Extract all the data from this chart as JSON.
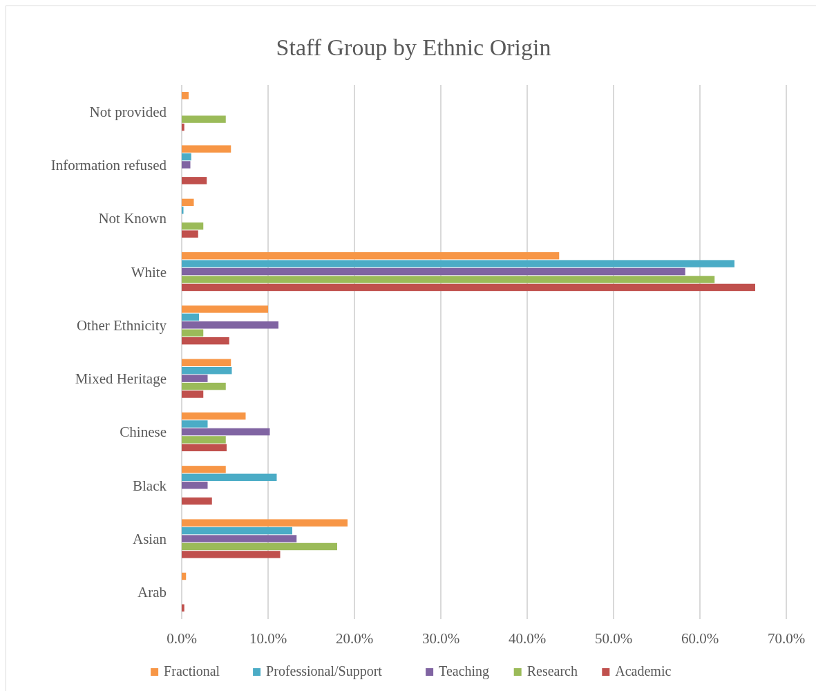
{
  "chart_data": {
    "type": "bar",
    "orientation": "horizontal",
    "title": "Staff Group by Ethnic Origin",
    "categories": [
      "Not provided",
      "Information refused",
      "Not Known",
      "White",
      "Other Ethnicity",
      "Mixed Heritage",
      "Chinese",
      "Black",
      "Asian",
      "Arab"
    ],
    "series": [
      {
        "name": "Fractional",
        "color": "#f79646",
        "values": [
          0.8,
          5.7,
          1.4,
          43.7,
          10.0,
          5.7,
          7.4,
          5.1,
          19.2,
          0.5
        ]
      },
      {
        "name": "Professional/Support",
        "color": "#4bacc6",
        "values": [
          0,
          1.1,
          0.2,
          64.0,
          2.0,
          5.8,
          3.0,
          11.0,
          12.8,
          0
        ]
      },
      {
        "name": "Teaching",
        "color": "#8064a2",
        "values": [
          0,
          1.0,
          0,
          58.3,
          11.2,
          3.0,
          10.2,
          3.0,
          13.3,
          0
        ]
      },
      {
        "name": "Research",
        "color": "#9bbb59",
        "values": [
          5.1,
          0,
          2.5,
          61.7,
          2.5,
          5.1,
          5.1,
          0,
          18.0,
          0
        ]
      },
      {
        "name": "Academic",
        "color": "#c0504d",
        "values": [
          0.3,
          2.9,
          1.9,
          66.4,
          5.5,
          2.5,
          5.2,
          3.5,
          11.4,
          0.3
        ]
      }
    ],
    "xlim": [
      0,
      70
    ],
    "xticks": [
      {
        "value": 0,
        "label": "0.0%"
      },
      {
        "value": 10,
        "label": "10.0%"
      },
      {
        "value": 20,
        "label": "20.0%"
      },
      {
        "value": 30,
        "label": "30.0%"
      },
      {
        "value": 40,
        "label": "40.0%"
      },
      {
        "value": 50,
        "label": "50.0%"
      },
      {
        "value": 60,
        "label": "60.0%"
      },
      {
        "value": 70,
        "label": "70.0%"
      }
    ],
    "grid": "x",
    "legend": "bottom"
  }
}
